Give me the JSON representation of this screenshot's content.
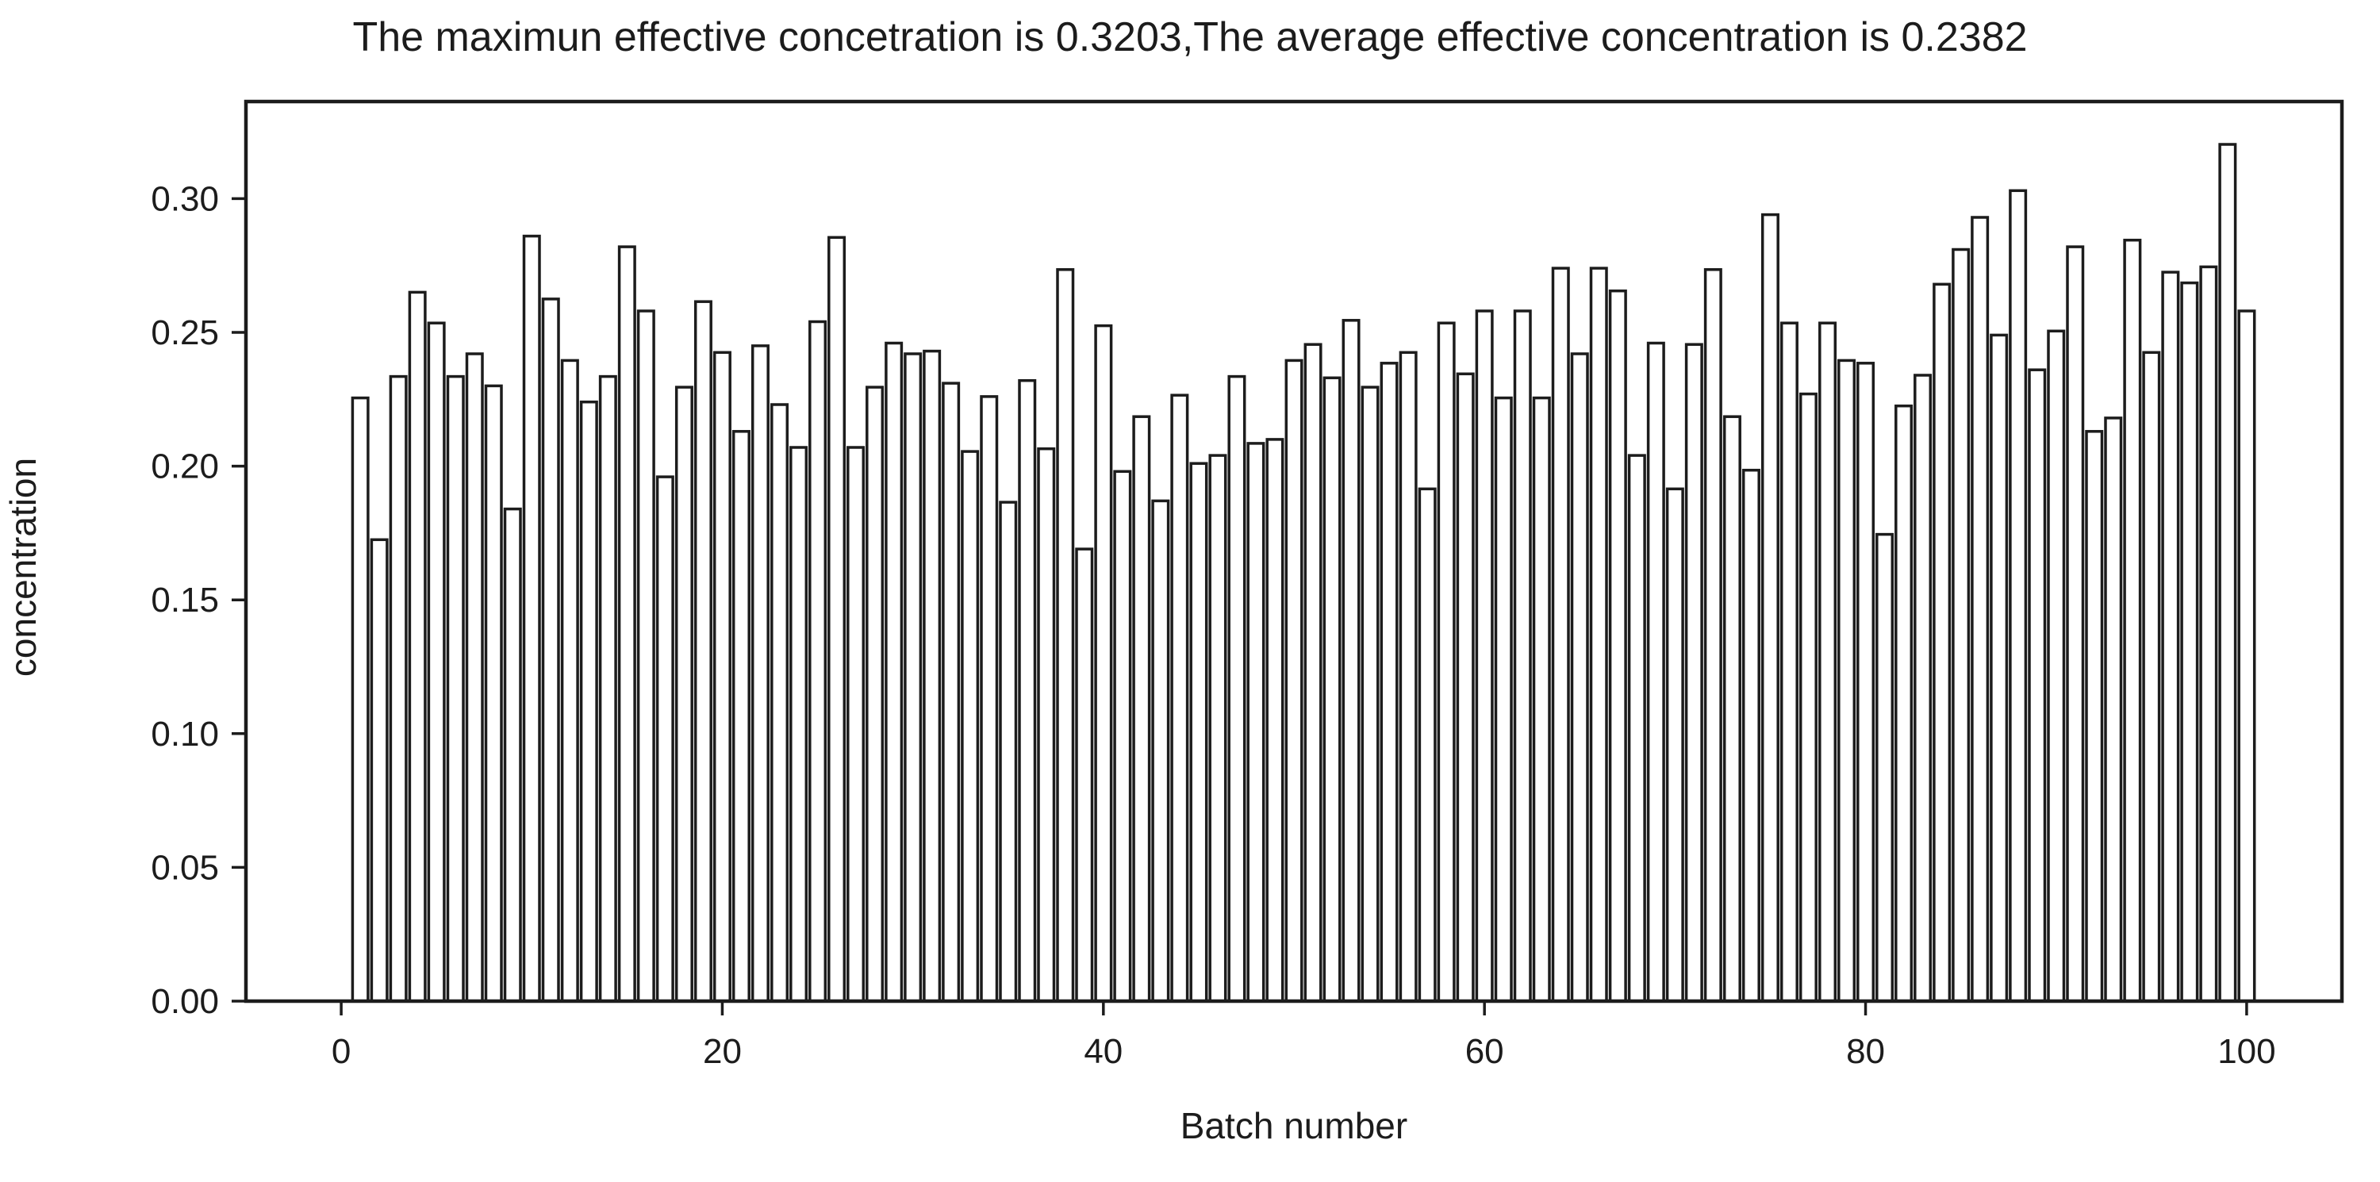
{
  "figure": {
    "background": "#ffffff",
    "ink": "#1c1c1c"
  },
  "chart_data": {
    "type": "bar",
    "title": "The maximun effective concetration is 0.3203,The average effective concentration is 0.2382",
    "xlabel": "Batch number",
    "ylabel": "concentration",
    "x_start": 1,
    "values": [
      0.2255,
      0.1725,
      0.2335,
      0.265,
      0.2535,
      0.2335,
      0.242,
      0.23,
      0.184,
      0.286,
      0.2625,
      0.2395,
      0.224,
      0.2335,
      0.282,
      0.258,
      0.196,
      0.2295,
      0.2615,
      0.2425,
      0.213,
      0.245,
      0.223,
      0.207,
      0.254,
      0.2855,
      0.207,
      0.2295,
      0.246,
      0.242,
      0.243,
      0.231,
      0.2055,
      0.226,
      0.1865,
      0.232,
      0.2065,
      0.2735,
      0.169,
      0.2525,
      0.198,
      0.2185,
      0.187,
      0.2265,
      0.201,
      0.204,
      0.2335,
      0.2085,
      0.21,
      0.2395,
      0.2455,
      0.233,
      0.2545,
      0.2295,
      0.2385,
      0.2425,
      0.1915,
      0.2535,
      0.2345,
      0.258,
      0.2255,
      0.258,
      0.2255,
      0.274,
      0.242,
      0.274,
      0.2655,
      0.204,
      0.246,
      0.1915,
      0.2455,
      0.2735,
      0.2185,
      0.1985,
      0.294,
      0.2535,
      0.227,
      0.2535,
      0.2395,
      0.2385,
      0.1745,
      0.2225,
      0.234,
      0.268,
      0.281,
      0.293,
      0.249,
      0.303,
      0.236,
      0.2505,
      0.282,
      0.213,
      0.218,
      0.2845,
      0.2425,
      0.2725,
      0.2685,
      0.2745,
      0.3203,
      0.258
    ],
    "ylim": [
      0,
      0.3363
    ],
    "xlim": [
      -5,
      105
    ],
    "yticks": [
      "0.00",
      "0.05",
      "0.10",
      "0.15",
      "0.20",
      "0.25",
      "0.30"
    ],
    "xticks": [
      0,
      20,
      40,
      60,
      80,
      100
    ],
    "grid": false,
    "legend": null,
    "annotations": {
      "max_effective_concentration": "0.3203",
      "average_effective_concentration": "0.2382"
    },
    "bar_style": {
      "fill": "#ffffff",
      "edge": "#1c1c1c",
      "edge_width": 3.5
    }
  }
}
